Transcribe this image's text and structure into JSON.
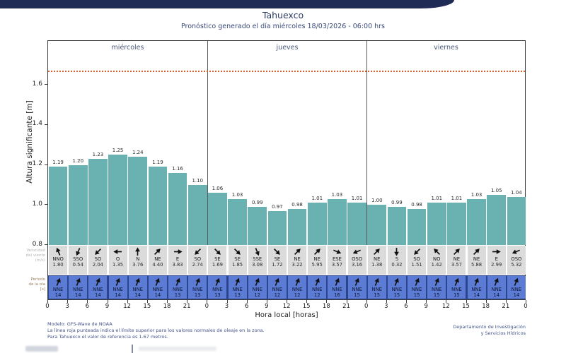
{
  "header": {
    "title": "Tahuexco",
    "subtitle": "Pronóstico generado el día miércoles 18/03/2026 - 06:00 hrs"
  },
  "chart_data": {
    "type": "bar",
    "title": "Tahuexco",
    "ylabel": "Altura significante [m]",
    "xlabel": "Hora local [horas]",
    "ylim": [
      0.8,
      1.82
    ],
    "yticks": [
      "0.8",
      "1.0",
      "1.2",
      "1.4",
      "1.6"
    ],
    "grid": false,
    "reference_line": {
      "value": 1.67,
      "color": "#d95f2b",
      "style": "dotted",
      "meaning": "límite superior oleaje normal"
    },
    "day_labels": [
      "miércoles",
      "jueves",
      "viernes"
    ],
    "x_tick_labels": [
      "0",
      "3",
      "6",
      "9",
      "12",
      "15",
      "18",
      "21",
      "0",
      "3",
      "6",
      "9",
      "12",
      "15",
      "18",
      "21",
      "0",
      "3",
      "6",
      "9",
      "12",
      "15",
      "18",
      "21",
      "0"
    ],
    "values": [
      "1.19",
      "1.20",
      "1.23",
      "1.25",
      "1.24",
      "1.19",
      "1.16",
      "1.10",
      "1.06",
      "1.03",
      "0.99",
      "0.97",
      "0.98",
      "1.01",
      "1.03",
      "1.01",
      "1.00",
      "0.99",
      "0.98",
      "1.01",
      "1.01",
      "1.03",
      "1.05",
      "1.04"
    ],
    "wind_row": {
      "side_label": [
        "Velocidad",
        "del viento",
        "(m/s)"
      ],
      "directions": [
        "NNO",
        "SSO",
        "SO",
        "O",
        "N",
        "NE",
        "E",
        "SO",
        "SE",
        "SE",
        "SSE",
        "SE",
        "NE",
        "NE",
        "ESE",
        "OSO",
        "NE",
        "S",
        "SO",
        "NO",
        "NE",
        "NE",
        "E",
        "OSO"
      ],
      "speeds": [
        "1.80",
        "0.54",
        "2.04",
        "1.35",
        "3.76",
        "4.40",
        "3.83",
        "2.74",
        "1.69",
        "1.85",
        "3.08",
        "1.72",
        "3.22",
        "5.95",
        "3.57",
        "3.16",
        "1.38",
        "0.32",
        "1.51",
        "1.42",
        "3.57",
        "5.88",
        "2.99",
        "5.32"
      ]
    },
    "period_row": {
      "side_label": [
        "Período",
        "de la ola",
        "[s]"
      ],
      "directions": [
        "NNE",
        "NNE",
        "NNE",
        "NNE",
        "NNE",
        "NNE",
        "NNE",
        "NNE",
        "NNE",
        "NNE",
        "NNE",
        "NNE",
        "NNE",
        "NNE",
        "NNE",
        "NNE",
        "NNE",
        "NNE",
        "NNE",
        "NNE",
        "NNE",
        "NNE",
        "NNE",
        "NNE"
      ],
      "values": [
        "14",
        "14",
        "14",
        "14",
        "14",
        "14",
        "13",
        "13",
        "13",
        "13",
        "12",
        "12",
        "12",
        "12",
        "16",
        "15",
        "15",
        "15",
        "15",
        "15",
        "15",
        "14",
        "14",
        "14"
      ]
    }
  },
  "footer": {
    "line1": "Modelo: GFS-Wave de NOAA",
    "line2": "La línea roja punteada indica el límite superior para los valores normales de oleaje en la zona.",
    "line3": "Para Tahuexco el valor de referencia es 1.67 metros.",
    "right_line1": "Departamento de Investigación",
    "right_line2": "y Servicios Hídricos"
  },
  "colors": {
    "topbar": "#1f2a55",
    "bar_fill": "#6ab1b2",
    "wind_row_bg": "#dbdbdb",
    "period_row_bg": "#5b7bd5",
    "period_row_separator": "#2c458f",
    "reference_line": "#d95f2b",
    "title_text": "#2e3b66",
    "day_text": "#4a5878",
    "footer_text": "#44548a",
    "wind_side_label": "#b5b5b5",
    "period_side_label": "#9a8060"
  }
}
